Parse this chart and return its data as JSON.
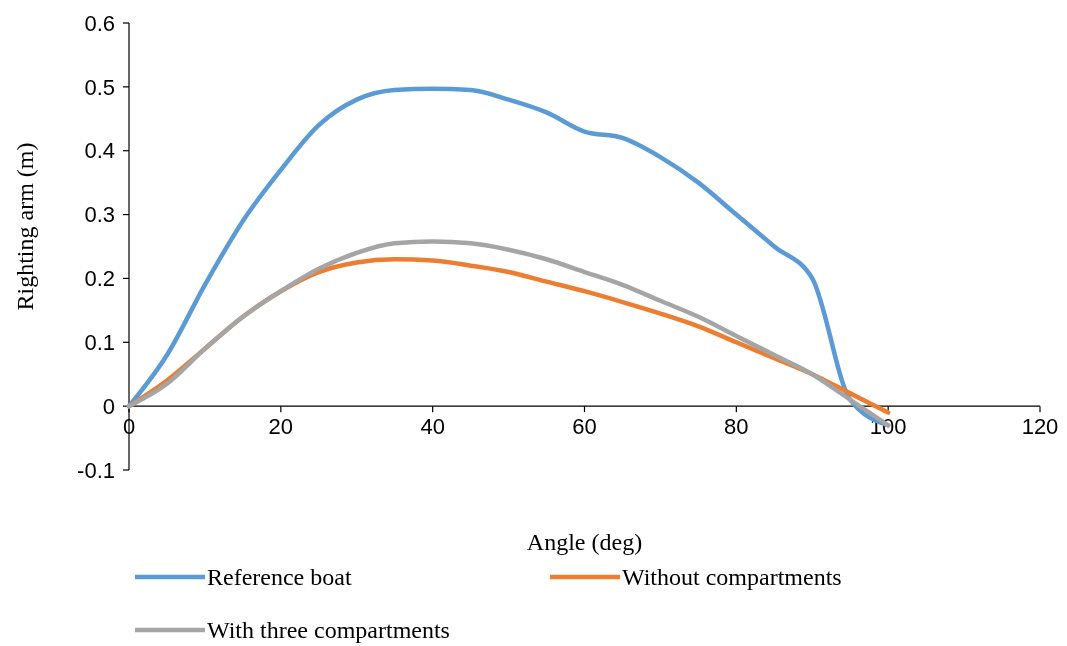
{
  "chart_data": {
    "type": "line",
    "xlabel": "Angle (deg)",
    "ylabel": "Righting arm (m)",
    "x": [
      0,
      5,
      10,
      15,
      20,
      25,
      30,
      35,
      40,
      45,
      50,
      55,
      60,
      65,
      70,
      75,
      80,
      85,
      90,
      95,
      100
    ],
    "xlim": [
      0,
      120
    ],
    "xticks": [
      0,
      20,
      40,
      60,
      80,
      100,
      120
    ],
    "ylim": [
      -0.1,
      0.6
    ],
    "yticks": [
      -0.1,
      0,
      0.1,
      0.2,
      0.3,
      0.4,
      0.5,
      0.6
    ],
    "grid": false,
    "legend": "bottom",
    "marker": "none",
    "line_style": "solid",
    "series": [
      {
        "name": "Reference boat",
        "color": "#5b9bd5",
        "values": [
          0,
          0.08,
          0.19,
          0.29,
          0.37,
          0.44,
          0.48,
          0.495,
          0.497,
          0.495,
          0.48,
          0.46,
          0.43,
          0.42,
          0.39,
          0.35,
          0.3,
          0.25,
          0.2,
          0.01,
          -0.03
        ]
      },
      {
        "name": "Without compartments",
        "color": "#ed7d31",
        "values": [
          0,
          0.04,
          0.09,
          0.14,
          0.18,
          0.21,
          0.225,
          0.23,
          0.228,
          0.22,
          0.21,
          0.195,
          0.18,
          0.163,
          0.145,
          0.125,
          0.1,
          0.075,
          0.05,
          0.02,
          -0.01
        ]
      },
      {
        "name": "With three compartments",
        "color": "#a5a5a5",
        "values": [
          0,
          0.035,
          0.09,
          0.14,
          0.18,
          0.215,
          0.24,
          0.255,
          0.258,
          0.255,
          0.245,
          0.23,
          0.21,
          0.19,
          0.165,
          0.14,
          0.11,
          0.08,
          0.05,
          0.01,
          -0.03
        ]
      }
    ]
  }
}
